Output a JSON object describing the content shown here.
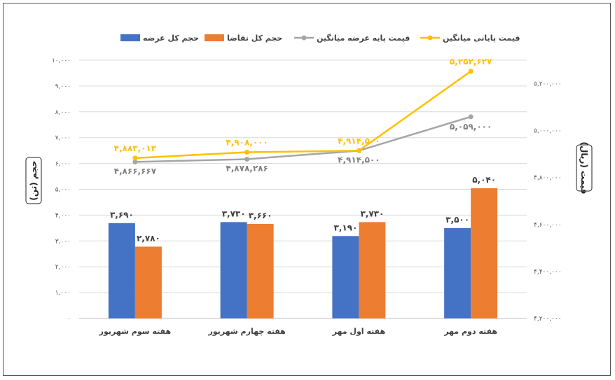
{
  "chart_data": {
    "type": "bar-line-combo",
    "categories": [
      "هفته سوم شهریور",
      "هفته چهارم شهریور",
      "هفته اول مهر",
      "هفته دوم مهر"
    ],
    "series": [
      {
        "name": "حجم کل عرضه",
        "type": "bar",
        "axis": "left",
        "color": "#4472C4",
        "values": [
          3690,
          3730,
          3190,
          3500
        ],
        "labels": [
          "۳,۶۹۰",
          "۳,۷۳۰",
          "۳,۱۹۰",
          "۳,۵۰۰"
        ]
      },
      {
        "name": "حجم کل تقاضا",
        "type": "bar",
        "axis": "left",
        "color": "#ED7D31",
        "values": [
          2780,
          3660,
          3730,
          5040
        ],
        "labels": [
          "۲,۷۸۰",
          "۳,۶۶۰",
          "۳,۷۳۰",
          "۵,۰۴۰"
        ]
      },
      {
        "name": "قیمت پایه عرضه میانگین",
        "type": "line",
        "axis": "right",
        "color": "#A5A5A5",
        "values": [
          4866667,
          4878286,
          4914500,
          5059000
        ],
        "labels": [
          "۴,۸۶۶,۶۶۷",
          "۴,۸۷۸,۲۸۶",
          "۴,۹۱۴,۵۰۰",
          "۵,۰۵۹,۰۰۰"
        ]
      },
      {
        "name": "قیمت پایانی میانگین",
        "type": "line",
        "axis": "right",
        "color": "#FFC000",
        "values": [
          4883013,
          4908000,
          4914500,
          5252627
        ],
        "labels": [
          "۴,۸۸۳,۰۱۳",
          "۴,۹۰۸,۰۰۰",
          "۴,۹۱۴,۵۰۰",
          "۵,۲۵۲,۶۲۷"
        ]
      }
    ],
    "y_left": {
      "title": "حجم (تن)",
      "min": 0,
      "max": 10000,
      "ticks": [
        0,
        1000,
        2000,
        3000,
        4000,
        5000,
        6000,
        7000,
        8000,
        9000,
        10000
      ],
      "tick_labels": [
        "۰",
        "۱,۰۰۰",
        "۲,۰۰۰",
        "۳,۰۰۰",
        "۴,۰۰۰",
        "۵,۰۰۰",
        "۶,۰۰۰",
        "۷,۰۰۰",
        "۸,۰۰۰",
        "۹,۰۰۰",
        "۱۰,۰۰۰"
      ]
    },
    "y_right": {
      "title": "قیمت (ریال)",
      "min": 4200000,
      "max": 5300000,
      "ticks": [
        4200000,
        4400000,
        4600000,
        4800000,
        5000000,
        5200000
      ],
      "tick_labels": [
        "۴,۲۰۰,۰۰۰",
        "۴,۴۰۰,۰۰۰",
        "۴,۶۰۰,۰۰۰",
        "۴,۸۰۰,۰۰۰",
        "۵,۰۰۰,۰۰۰",
        "۵,۲۰۰,۰۰۰"
      ]
    },
    "grid": true,
    "legend_position": "top"
  }
}
